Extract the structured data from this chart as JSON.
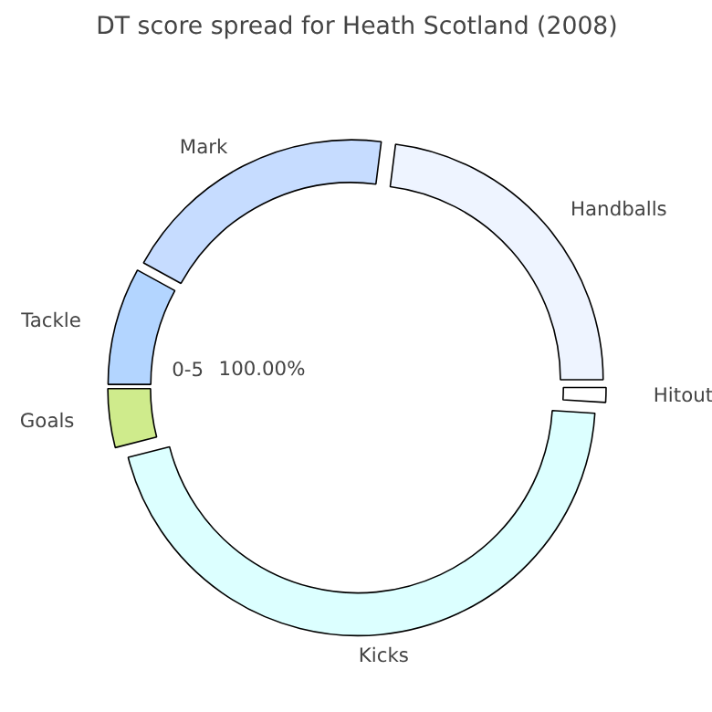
{
  "chart_data": {
    "type": "donut",
    "title": "DT score spread for Heath Scotland (2008)",
    "categories": [
      "Hitout",
      "Handballs",
      "Mark",
      "Tackle",
      "Goals",
      "Kicks"
    ],
    "values": [
      1,
      23,
      19,
      8,
      4,
      45
    ],
    "colors": [
      "#ffffff",
      "#eef4ff",
      "#c6dcff",
      "#b3d5ff",
      "#cfeb8c",
      "#dcffff"
    ],
    "annotations": [
      "0-5",
      "100.00%"
    ]
  }
}
